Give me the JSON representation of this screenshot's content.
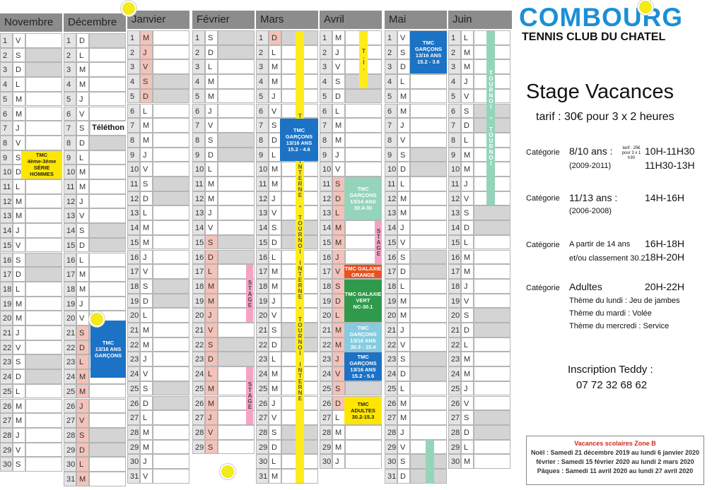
{
  "calendar": {
    "months": [
      {
        "name": "Novembre",
        "numbers": [
          1,
          2,
          3,
          4,
          5,
          6,
          7,
          8,
          9,
          10,
          11,
          12,
          13,
          14,
          15,
          16,
          17,
          18,
          19,
          20,
          21,
          22,
          23,
          24,
          25,
          26,
          27,
          28,
          29,
          30
        ],
        "letters": [
          "V",
          "S",
          "D",
          "L",
          "M",
          "M",
          "J",
          "V",
          "S",
          "D",
          "L",
          "M",
          "M",
          "J",
          "V",
          "S",
          "D",
          "L",
          "M",
          "M",
          "J",
          "V",
          "S",
          "D",
          "L",
          "M",
          "M",
          "J",
          "V",
          "S"
        ]
      },
      {
        "name": "Décembre",
        "numbers": [
          1,
          2,
          3,
          4,
          5,
          6,
          7,
          8,
          9,
          10,
          11,
          12,
          13,
          14,
          15,
          16,
          17,
          18,
          19,
          20,
          21,
          22,
          23,
          24,
          25,
          26,
          27,
          28,
          29,
          30,
          31
        ],
        "letters": [
          "D",
          "L",
          "M",
          "M",
          "J",
          "V",
          "S",
          "D",
          "L",
          "M",
          "M",
          "J",
          "V",
          "S",
          "D",
          "L",
          "M",
          "M",
          "J",
          "V",
          "S",
          "D",
          "L",
          "M",
          "M",
          "J",
          "V",
          "S",
          "D",
          "L",
          "M"
        ]
      },
      {
        "name": "Janvier",
        "numbers": [
          1,
          2,
          3,
          4,
          5,
          6,
          7,
          8,
          9,
          10,
          11,
          12,
          13,
          14,
          15,
          16,
          17,
          18,
          19,
          20,
          21,
          22,
          23,
          24,
          25,
          26,
          27,
          28,
          29,
          30,
          31
        ],
        "letters": [
          "M",
          "J",
          "V",
          "S",
          "D",
          "L",
          "M",
          "M",
          "J",
          "V",
          "S",
          "D",
          "L",
          "M",
          "M",
          "J",
          "V",
          "S",
          "D",
          "L",
          "M",
          "M",
          "J",
          "V",
          "S",
          "D",
          "L",
          "M",
          "M",
          "J",
          "V"
        ]
      },
      {
        "name": "Février",
        "numbers": [
          1,
          2,
          3,
          4,
          5,
          6,
          7,
          8,
          9,
          10,
          11,
          12,
          13,
          14,
          15,
          16,
          17,
          18,
          19,
          20,
          21,
          22,
          23,
          24,
          25,
          26,
          27,
          28,
          29
        ],
        "letters": [
          "S",
          "D",
          "L",
          "M",
          "M",
          "J",
          "V",
          "S",
          "D",
          "L",
          "M",
          "M",
          "J",
          "V",
          "S",
          "D",
          "L",
          "M",
          "M",
          "J",
          "V",
          "S",
          "D",
          "L",
          "M",
          "M",
          "J",
          "V",
          "S"
        ]
      },
      {
        "name": "Mars",
        "numbers": [
          1,
          2,
          3,
          4,
          5,
          6,
          7,
          8,
          9,
          10,
          11,
          12,
          13,
          14,
          15,
          16,
          17,
          18,
          19,
          20,
          21,
          22,
          23,
          24,
          25,
          26,
          27,
          28,
          29,
          30,
          31
        ],
        "letters": [
          "D",
          "L",
          "M",
          "M",
          "J",
          "V",
          "S",
          "D",
          "L",
          "M",
          "M",
          "J",
          "V",
          "S",
          "D",
          "L",
          "M",
          "M",
          "J",
          "V",
          "S",
          "D",
          "L",
          "M",
          "M",
          "J",
          "V",
          "S",
          "D",
          "L",
          "M"
        ]
      },
      {
        "name": "Avril",
        "numbers": [
          1,
          2,
          3,
          4,
          5,
          6,
          7,
          8,
          9,
          10,
          11,
          12,
          13,
          14,
          15,
          16,
          17,
          18,
          19,
          20,
          21,
          22,
          23,
          24,
          25,
          26,
          27,
          28,
          29,
          30
        ],
        "letters": [
          "M",
          "J",
          "V",
          "S",
          "D",
          "L",
          "M",
          "M",
          "J",
          "V",
          "S",
          "D",
          "L",
          "M",
          "M",
          "J",
          "V",
          "S",
          "D",
          "L",
          "M",
          "M",
          "J",
          "V",
          "S",
          "D",
          "L",
          "M",
          "M",
          "J"
        ]
      },
      {
        "name": "Mai",
        "numbers": [
          1,
          2,
          3,
          4,
          5,
          6,
          7,
          8,
          9,
          10,
          11,
          12,
          13,
          14,
          15,
          16,
          17,
          18,
          19,
          20,
          21,
          22,
          23,
          24,
          25,
          26,
          27,
          28,
          29,
          30,
          31
        ],
        "letters": [
          "V",
          "S",
          "D",
          "L",
          "M",
          "M",
          "J",
          "V",
          "S",
          "D",
          "L",
          "M",
          "M",
          "J",
          "V",
          "S",
          "D",
          "L",
          "M",
          "M",
          "J",
          "V",
          "S",
          "D",
          "L",
          "M",
          "M",
          "J",
          "V",
          "S",
          "D"
        ]
      },
      {
        "name": "Juin",
        "numbers": [
          1,
          2,
          3,
          4,
          5,
          6,
          7,
          8,
          9,
          10,
          11,
          12,
          13,
          14,
          15,
          16,
          17,
          18,
          19,
          20,
          21,
          22,
          23,
          24,
          25,
          26,
          27,
          28,
          29,
          30
        ],
        "letters": [
          "L",
          "M",
          "M",
          "J",
          "V",
          "S",
          "D",
          "L",
          "M",
          "M",
          "J",
          "V",
          "S",
          "D",
          "L",
          "M",
          "M",
          "J",
          "V",
          "S",
          "D",
          "L",
          "M",
          "M",
          "J",
          "V",
          "S",
          "D",
          "L",
          "M"
        ]
      }
    ],
    "events": [
      {
        "lines": [
          "TMC",
          "4ème-3ème",
          "SÉRIE HOMMES"
        ]
      },
      {
        "lines": [
          "Téléthon"
        ]
      },
      {
        "lines": [
          "TMC",
          "13/16 ANS",
          "GARÇONS"
        ]
      },
      {
        "lines": [
          "TOURNOI INTERNE • TOURNOI INTERNE • TOURNOI INTERNE"
        ]
      },
      {
        "lines": [
          "TMC GARÇONS",
          "13/16 ANS",
          "15.2 - 4.6"
        ]
      },
      {
        "lines": [
          "STAGE"
        ]
      },
      {
        "lines": [
          "STAGE"
        ]
      },
      {
        "lines": [
          "T.I."
        ]
      },
      {
        "lines": [
          "TMC GARÇONS",
          "13/14 ANS",
          "30.4-30"
        ]
      },
      {
        "lines": [
          "STAGE"
        ]
      },
      {
        "lines": [
          "TMC GALAXIE",
          "ORANGE"
        ]
      },
      {
        "lines": [
          "TMC GALAXIE",
          "VERT",
          "NC-30.1"
        ]
      },
      {
        "lines": [
          "TMC GARÇONS",
          "13/16 ANS",
          "30.3 - 15.4"
        ]
      },
      {
        "lines": [
          "TMC GARÇONS",
          "13/16 ANS",
          "15.2 - 5.6"
        ]
      },
      {
        "lines": [
          "TMC",
          "ADULTES",
          "30.2-15.3"
        ]
      },
      {
        "lines": [
          "TMC GARÇONS",
          "13/16 ANS",
          "15.2 - 3.6"
        ]
      },
      {
        "lines": [
          "TOURNOI • TOURNOI"
        ]
      }
    ]
  },
  "header": {
    "logo": "COMBOURG",
    "club": "TENNIS CLUB DU CHATEL",
    "title": "Stage Vacances",
    "tarif": "tarif : 30€ pour 3 x 2 heures"
  },
  "categories": [
    {
      "label": "Catégorie",
      "name": "8/10 ans :",
      "note": "tarif : 25€ pour 3 x 1 h30",
      "years": "(2009-2011)",
      "times": [
        "10H-11H30",
        "11H30-13H"
      ]
    },
    {
      "label": "Catégorie",
      "name": "11/13 ans :",
      "years": "(2006-2008)",
      "times": [
        "14H-16H"
      ]
    },
    {
      "label": "Catégorie",
      "name": "A partir de 14 ans",
      "years": "et/ou classement 30.2",
      "times": [
        "16H-18H",
        "18H-20H"
      ]
    },
    {
      "label": "Catégorie",
      "name": "Adultes",
      "times": [
        "20H-22H"
      ],
      "themes": [
        "Thème du lundi : Jeu de jambes",
        "Thème du mardi : Volée",
        "Thème du mercredi : Service"
      ]
    }
  ],
  "inscription": {
    "label": "Inscription Teddy :",
    "phone": "07 72 32 68 62"
  },
  "vacances": {
    "title": "Vacances scolaires Zone B",
    "lines": [
      "Noël : Samedi 21 décembre 2019 au lundi 6 janvier 2020",
      "février : Samedi 15 février 2020 au lundi 2 mars 2020",
      "Pâques : Samedi 11 avril 2020 au lundi 27 avril 2020"
    ]
  }
}
